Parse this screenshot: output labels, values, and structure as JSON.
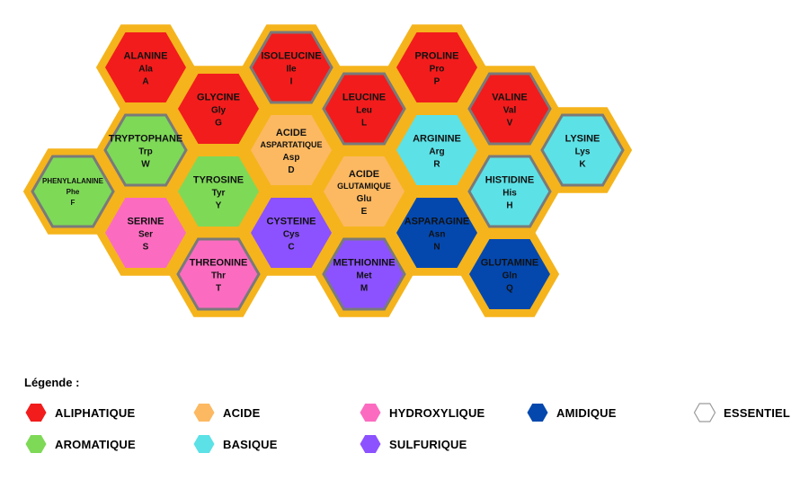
{
  "categories": {
    "aliphatique": {
      "label": "ALIPHATIQUE",
      "color": "#F21C1C"
    },
    "acide": {
      "label": "ACIDE",
      "color": "#FCB962"
    },
    "hydroxylique": {
      "label": "HYDROXYLIQUE",
      "color": "#FB6CC0"
    },
    "amidique": {
      "label": "AMIDIQUE",
      "color": "#0448AE"
    },
    "essentiel": {
      "label": "ESSENTIEL",
      "color": "#FFFFFF"
    },
    "aromatique": {
      "label": "AROMATIQUE",
      "color": "#7ED957"
    },
    "basique": {
      "label": "BASIQUE",
      "color": "#5CE1E6"
    },
    "sulfurique": {
      "label": "SULFURIQUE",
      "color": "#8C52FF"
    }
  },
  "colors": {
    "frame": "#F5B41C",
    "essential_border": "#7A7A7A"
  },
  "legend": {
    "title": "Légende :",
    "order": [
      "aliphatique",
      "acide",
      "hydroxylique",
      "amidique",
      "essentiel",
      "aromatique",
      "basique",
      "sulfurique"
    ]
  },
  "amino_acids": [
    {
      "id": "alanine",
      "name": "ALANINE",
      "code3": "Ala",
      "code1": "A",
      "category": "aliphatique",
      "essential": false
    },
    {
      "id": "isoleucine",
      "name": "ISOLEUCINE",
      "code3": "Ile",
      "code1": "I",
      "category": "aliphatique",
      "essential": true
    },
    {
      "id": "proline",
      "name": "PROLINE",
      "code3": "Pro",
      "code1": "P",
      "category": "aliphatique",
      "essential": false
    },
    {
      "id": "glycine",
      "name": "GLYCINE",
      "code3": "Gly",
      "code1": "G",
      "category": "aliphatique",
      "essential": false
    },
    {
      "id": "leucine",
      "name": "LEUCINE",
      "code3": "Leu",
      "code1": "L",
      "category": "aliphatique",
      "essential": true
    },
    {
      "id": "valine",
      "name": "VALINE",
      "code3": "Val",
      "code1": "V",
      "category": "aliphatique",
      "essential": true
    },
    {
      "id": "tryptophane",
      "name": "TRYPTOPHANE",
      "code3": "Trp",
      "code1": "W",
      "category": "aromatique",
      "essential": true
    },
    {
      "id": "acide-aspartatique",
      "name": [
        "ACIDE",
        "ASPARTATIQUE"
      ],
      "code3": "Asp",
      "code1": "D",
      "category": "acide",
      "essential": false
    },
    {
      "id": "arginine",
      "name": "ARGININE",
      "code3": "Arg",
      "code1": "R",
      "category": "basique",
      "essential": false
    },
    {
      "id": "lysine",
      "name": "LYSINE",
      "code3": "Lys",
      "code1": "K",
      "category": "basique",
      "essential": true
    },
    {
      "id": "phenylalanine",
      "name": "PHENYLALANINE",
      "code3": "Phe",
      "code1": "F",
      "category": "aromatique",
      "essential": true
    },
    {
      "id": "tyrosine",
      "name": "TYROSINE",
      "code3": "Tyr",
      "code1": "Y",
      "category": "aromatique",
      "essential": false
    },
    {
      "id": "acide-glutamique",
      "name": [
        "ACIDE",
        "GLUTAMIQUE"
      ],
      "code3": "Glu",
      "code1": "E",
      "category": "acide",
      "essential": false
    },
    {
      "id": "histidine",
      "name": "HISTIDINE",
      "code3": "His",
      "code1": "H",
      "category": "basique",
      "essential": true
    },
    {
      "id": "serine",
      "name": "SERINE",
      "code3": "Ser",
      "code1": "S",
      "category": "hydroxylique",
      "essential": false
    },
    {
      "id": "cysteine",
      "name": "CYSTEINE",
      "code3": "Cys",
      "code1": "C",
      "category": "sulfurique",
      "essential": false
    },
    {
      "id": "asparagine",
      "name": "ASPARAGINE",
      "code3": "Asn",
      "code1": "N",
      "category": "amidique",
      "essential": false
    },
    {
      "id": "threonine",
      "name": "THREONINE",
      "code3": "Thr",
      "code1": "T",
      "category": "hydroxylique",
      "essential": true
    },
    {
      "id": "methionine",
      "name": "METHIONINE",
      "code3": "Met",
      "code1": "M",
      "category": "sulfurique",
      "essential": true
    },
    {
      "id": "glutamine",
      "name": "GLUTAMINE",
      "code3": "Gln",
      "code1": "Q",
      "category": "amidique",
      "essential": false
    }
  ]
}
